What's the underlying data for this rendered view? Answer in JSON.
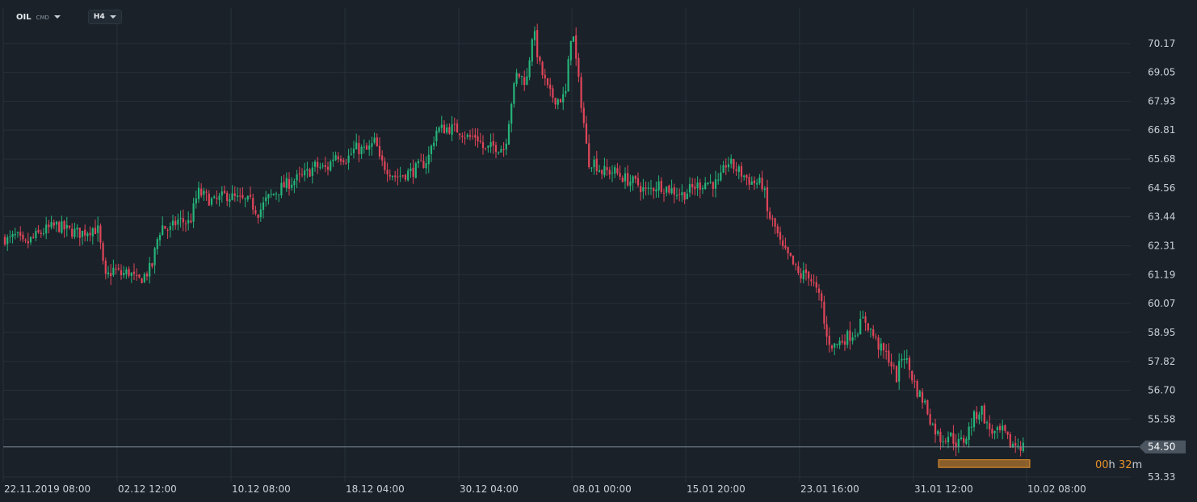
{
  "header": {
    "symbol": "OIL",
    "symbol_type": "CMD",
    "timeframe": "H4"
  },
  "timer": {
    "hours": "00",
    "h_unit": "h",
    "minutes": "32",
    "m_unit": "m"
  },
  "colors": {
    "background": "#1a2128",
    "up": "#26b47a",
    "down": "#e0455a",
    "grid": "#27313a",
    "current_marker": "#e8912d"
  },
  "chart_data": {
    "type": "candlestick",
    "title": "",
    "y_ticks": [
      "70.17",
      "69.05",
      "67.93",
      "66.81",
      "65.68",
      "64.56",
      "63.44",
      "62.31",
      "61.19",
      "60.07",
      "58.95",
      "57.82",
      "56.70",
      "55.58",
      "54.50",
      "53.33"
    ],
    "ylim": [
      53.0,
      71.5
    ],
    "x_ticks": [
      "22.11.2019 08:00",
      "02.12 12:00",
      "10.12 08:00",
      "18.12 04:00",
      "30.12 04:00",
      "08.01 00:00",
      "15.01 20:00",
      "23.01 16:00",
      "31.01 12:00",
      "10.02 08:00"
    ],
    "current_price": "54.50",
    "grid": true,
    "close_path": [
      [
        0,
        62.8
      ],
      [
        10,
        62.5
      ],
      [
        20,
        62.7
      ],
      [
        30,
        62.3
      ],
      [
        40,
        62.6
      ],
      [
        55,
        62.9
      ],
      [
        70,
        63.1
      ],
      [
        85,
        62.9
      ],
      [
        100,
        62.8
      ],
      [
        115,
        63.0
      ],
      [
        122,
        62.9
      ],
      [
        126,
        61.9
      ],
      [
        130,
        61.0
      ],
      [
        140,
        61.4
      ],
      [
        150,
        61.2
      ],
      [
        160,
        61.3
      ],
      [
        170,
        60.9
      ],
      [
        180,
        61.2
      ],
      [
        188,
        61.5
      ],
      [
        195,
        62.6
      ],
      [
        200,
        63.1
      ],
      [
        210,
        62.9
      ],
      [
        220,
        63.3
      ],
      [
        235,
        63.2
      ],
      [
        245,
        64.4
      ],
      [
        255,
        64.2
      ],
      [
        265,
        64.0
      ],
      [
        280,
        64.3
      ],
      [
        295,
        64.1
      ],
      [
        310,
        64.0
      ],
      [
        320,
        63.6
      ],
      [
        330,
        64.1
      ],
      [
        345,
        64.5
      ],
      [
        360,
        64.8
      ],
      [
        375,
        65.0
      ],
      [
        390,
        65.4
      ],
      [
        405,
        65.3
      ],
      [
        415,
        65.9
      ],
      [
        430,
        65.7
      ],
      [
        440,
        66.1
      ],
      [
        455,
        66.0
      ],
      [
        465,
        66.4
      ],
      [
        470,
        65.6
      ],
      [
        480,
        65.3
      ],
      [
        490,
        65.0
      ],
      [
        500,
        65.1
      ],
      [
        510,
        65.2
      ],
      [
        520,
        65.4
      ],
      [
        530,
        65.7
      ],
      [
        540,
        66.8
      ],
      [
        555,
        66.9
      ],
      [
        570,
        66.8
      ],
      [
        580,
        66.5
      ],
      [
        590,
        66.6
      ],
      [
        600,
        66.0
      ],
      [
        612,
        66.2
      ],
      [
        625,
        66.1
      ],
      [
        633,
        67.9
      ],
      [
        640,
        69.0
      ],
      [
        652,
        68.7
      ],
      [
        660,
        70.8
      ],
      [
        668,
        69.3
      ],
      [
        680,
        68.2
      ],
      [
        690,
        68.0
      ],
      [
        700,
        68.1
      ],
      [
        708,
        70.9
      ],
      [
        715,
        69.0
      ],
      [
        722,
        67.3
      ],
      [
        728,
        65.6
      ],
      [
        735,
        65.6
      ],
      [
        745,
        65.2
      ],
      [
        760,
        65.2
      ],
      [
        775,
        64.9
      ],
      [
        790,
        64.7
      ],
      [
        800,
        64.4
      ],
      [
        815,
        64.7
      ],
      [
        830,
        64.5
      ],
      [
        845,
        64.3
      ],
      [
        860,
        64.6
      ],
      [
        875,
        64.8
      ],
      [
        890,
        64.7
      ],
      [
        900,
        65.6
      ],
      [
        915,
        65.2
      ],
      [
        930,
        64.8
      ],
      [
        945,
        64.7
      ],
      [
        950,
        63.6
      ],
      [
        960,
        63.0
      ],
      [
        968,
        62.2
      ],
      [
        978,
        61.8
      ],
      [
        990,
        61.1
      ],
      [
        1000,
        61.3
      ],
      [
        1010,
        60.6
      ],
      [
        1018,
        60.0
      ],
      [
        1022,
        58.8
      ],
      [
        1032,
        58.4
      ],
      [
        1045,
        58.7
      ],
      [
        1060,
        59.0
      ],
      [
        1070,
        59.5
      ],
      [
        1080,
        58.9
      ],
      [
        1090,
        58.3
      ],
      [
        1100,
        58.0
      ],
      [
        1110,
        57.2
      ],
      [
        1118,
        58.2
      ],
      [
        1125,
        57.6
      ],
      [
        1135,
        56.7
      ],
      [
        1145,
        56.2
      ],
      [
        1155,
        55.3
      ],
      [
        1165,
        54.8
      ],
      [
        1175,
        55.0
      ],
      [
        1185,
        54.6
      ],
      [
        1195,
        54.8
      ],
      [
        1205,
        55.6
      ],
      [
        1215,
        56.0
      ],
      [
        1222,
        55.3
      ],
      [
        1232,
        55.0
      ],
      [
        1242,
        55.1
      ],
      [
        1250,
        54.6
      ],
      [
        1260,
        54.6
      ],
      [
        1268,
        54.5
      ]
    ],
    "highlight_range": {
      "x_from": 1162,
      "x_to": 1275,
      "y_from": 53.7,
      "y_to": 54.0
    }
  }
}
